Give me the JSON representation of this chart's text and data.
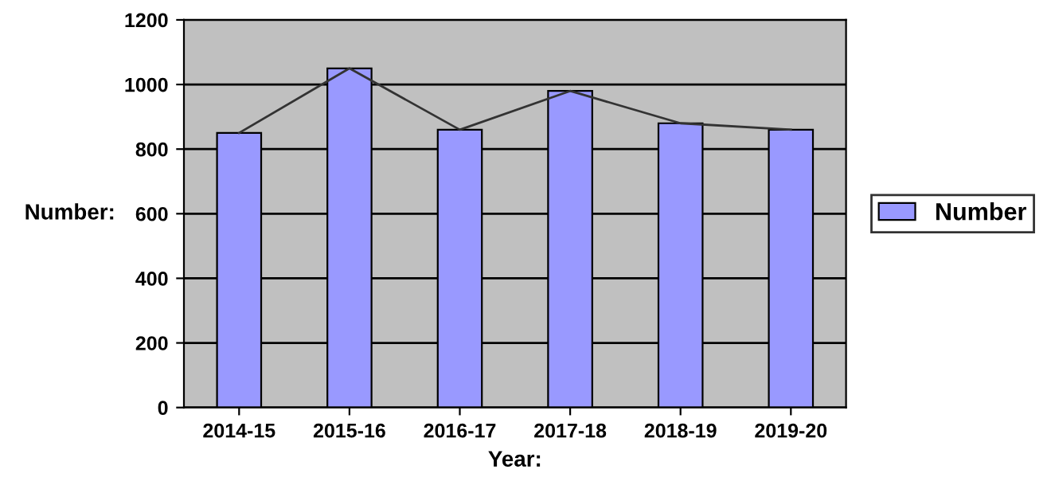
{
  "chart_data": {
    "type": "bar",
    "xlabel": "Year:",
    "ylabel": "Number:",
    "categories": [
      "2014-15",
      "2015-16",
      "2016-17",
      "2017-18",
      "2018-19",
      "2019-20"
    ],
    "series": [
      {
        "name": "Number",
        "color": "#9999ff",
        "values": [
          850,
          1050,
          860,
          980,
          880,
          860
        ]
      },
      {
        "type": "line",
        "color": "#333333",
        "values": [
          850,
          1050,
          860,
          980,
          880,
          860
        ]
      }
    ],
    "ylim": [
      0,
      1200
    ],
    "yticks": [
      0,
      200,
      400,
      600,
      800,
      1000,
      1200
    ],
    "grid": "y",
    "legend": "right"
  }
}
